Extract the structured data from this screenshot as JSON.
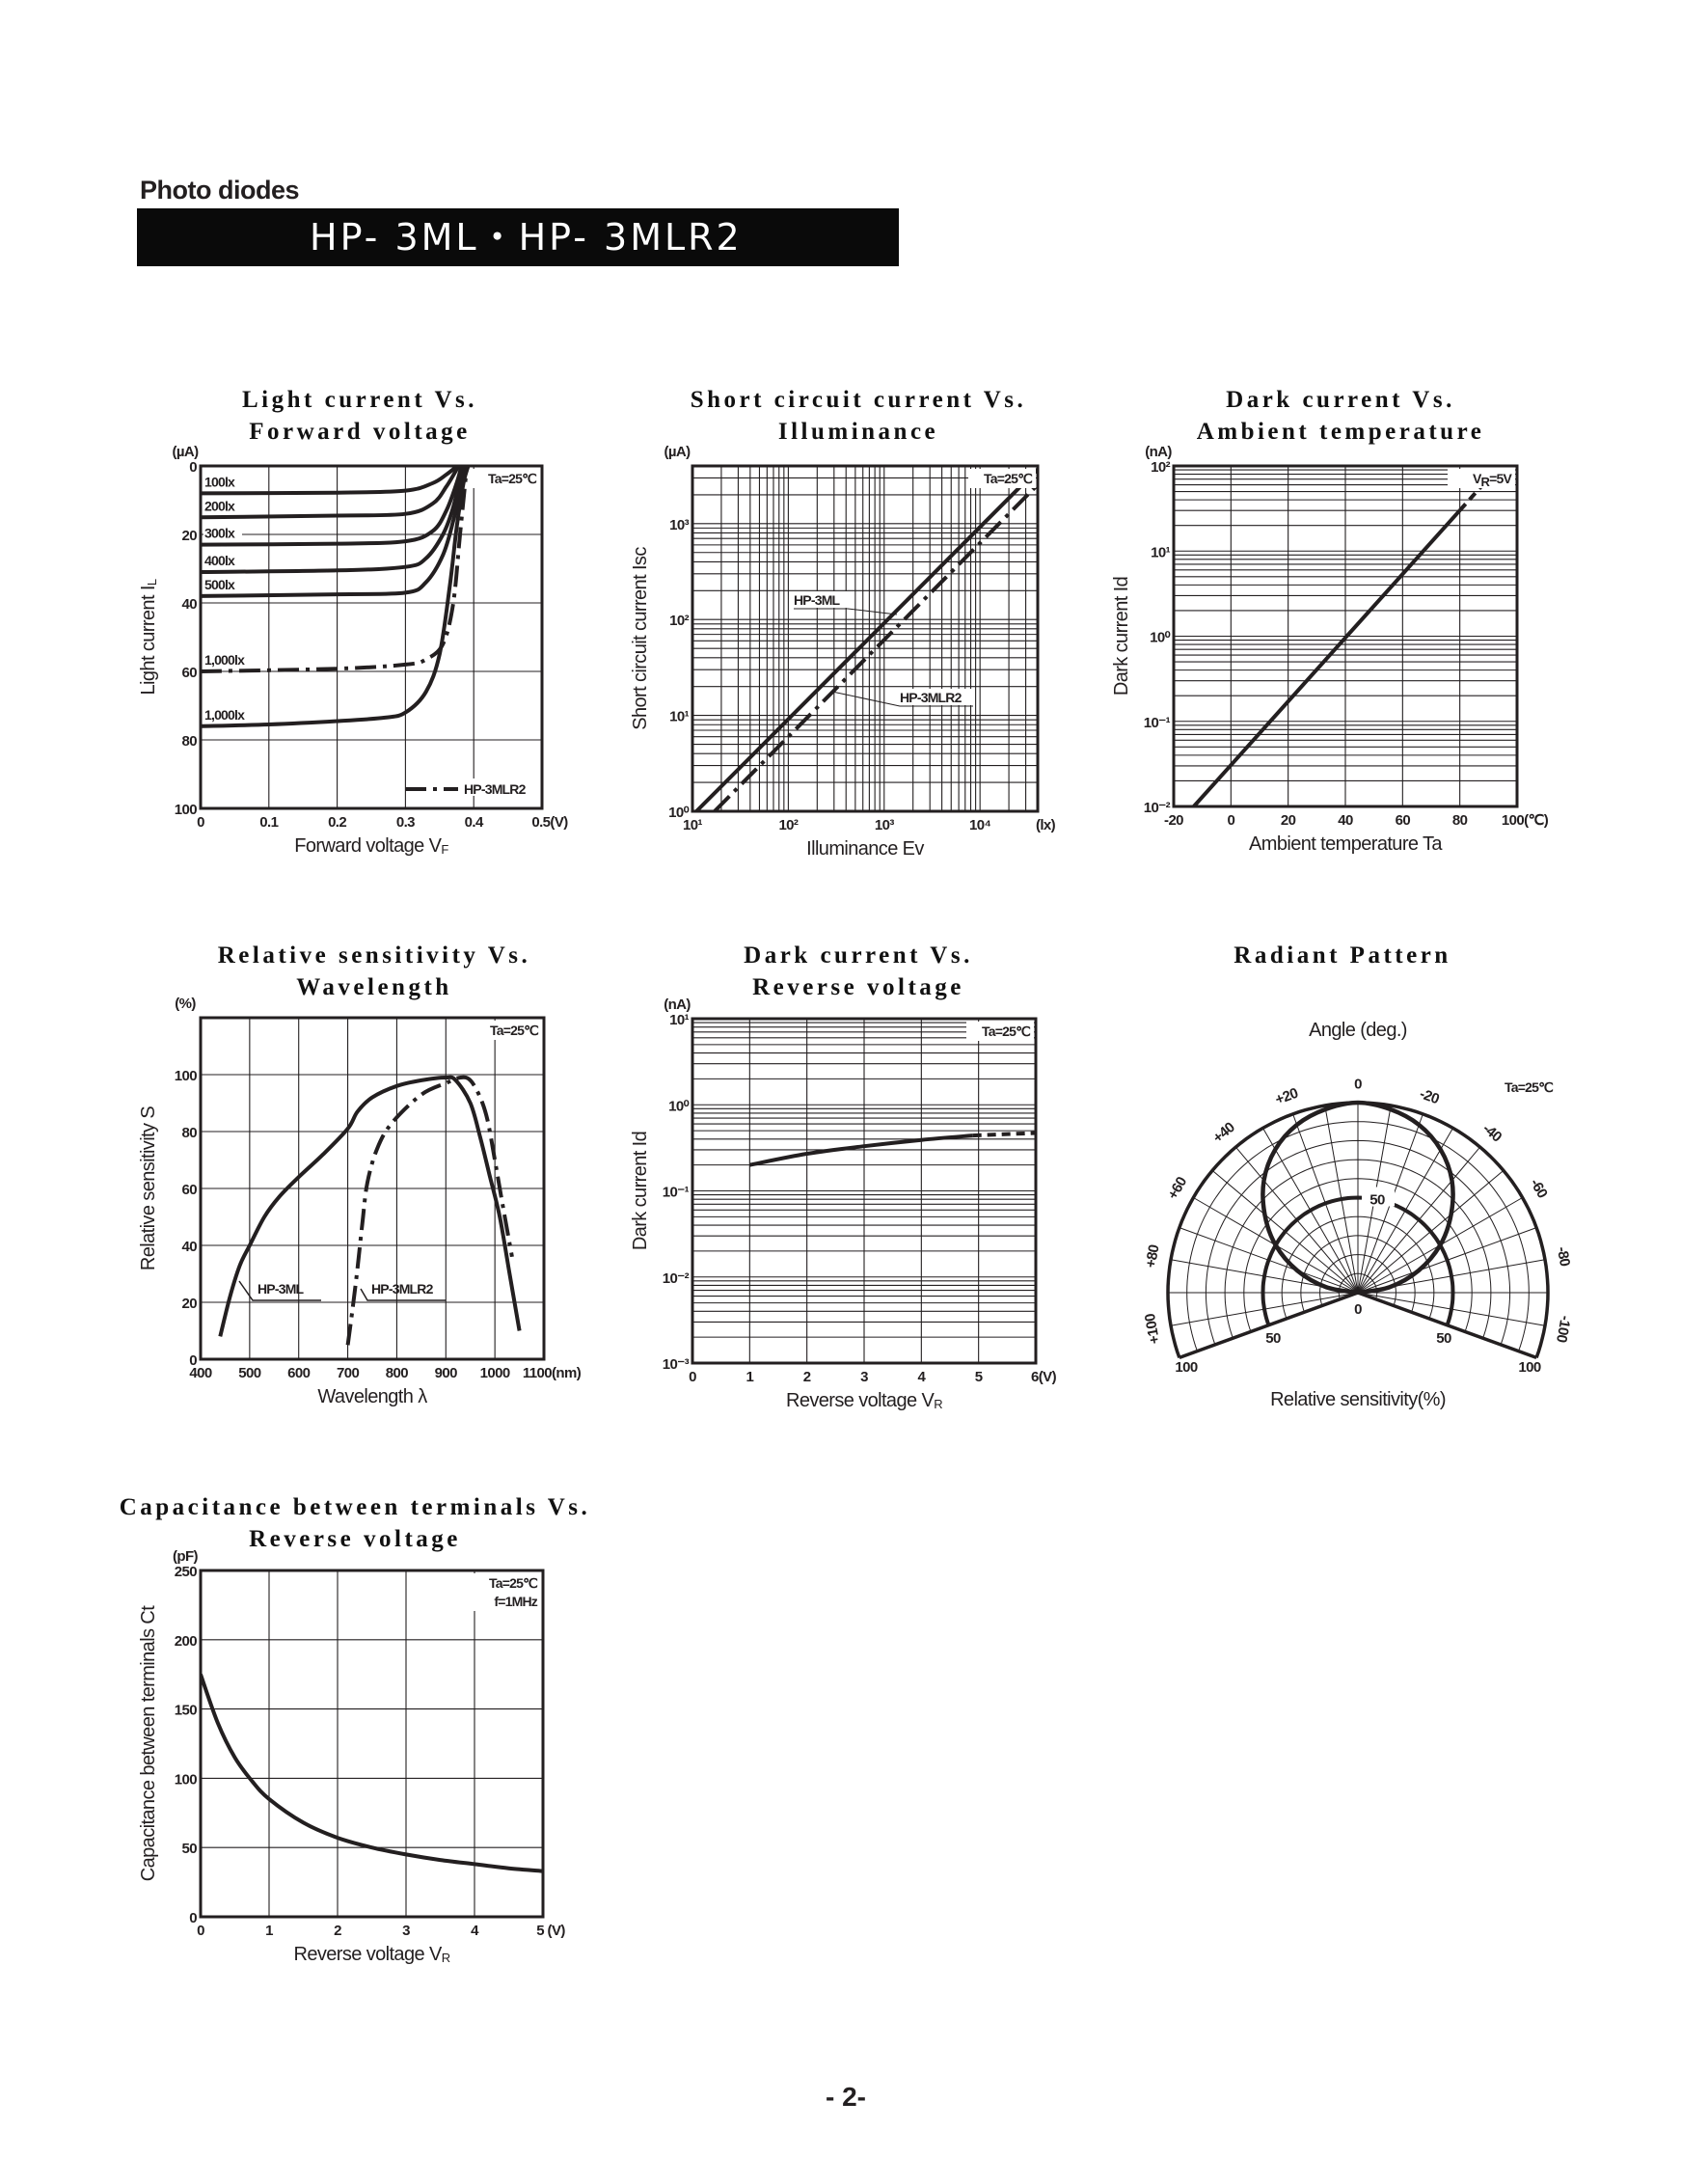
{
  "header": {
    "section": "Photo diodes",
    "model": "HP- 3ML・HP- 3MLR2"
  },
  "footer": {
    "page": "- 2-"
  },
  "colors": {
    "ink": "#231f20",
    "bar": "#0a0a0a",
    "bar_text": "#ffffff"
  },
  "chart_data": [
    {
      "type": "line",
      "title": [
        "Light current Vs.",
        "Forward voltage"
      ],
      "condition": [
        "Ta=25℃"
      ],
      "xaxis": {
        "label": "Forward voltage  V",
        "label_sub": "F",
        "scale": "linear",
        "range": [
          0,
          0.5
        ],
        "ticks": [
          0,
          0.1,
          0.2,
          0.3,
          0.4,
          0.5
        ],
        "tick_labels": [
          "0",
          "0.1",
          "0.2",
          "0.3",
          "0.4",
          "0.5(V)"
        ],
        "grid": [
          0.1,
          0.2,
          0.3,
          0.4
        ]
      },
      "yaxis": {
        "label": "Light current  I",
        "label_sub": "L",
        "unit": "(µA)",
        "scale": "linear",
        "range": [
          0,
          100
        ],
        "reversed": true,
        "ticks": [
          0,
          20,
          40,
          60,
          80,
          100
        ],
        "tick_labels": [
          "0",
          "20",
          "40",
          "60",
          "80",
          "100"
        ],
        "grid": [
          20,
          40,
          60,
          80
        ]
      },
      "legend": {
        "position": "bottom-right",
        "entries": [
          {
            "label": "HP-3MLR2",
            "style": "dashdot"
          }
        ]
      },
      "series": [
        {
          "name": "100lx",
          "style": "solid",
          "points": [
            [
              0,
              8
            ],
            [
              0.2,
              7.8
            ],
            [
              0.3,
              7.2
            ],
            [
              0.34,
              5
            ],
            [
              0.36,
              2.5
            ],
            [
              0.376,
              0
            ]
          ]
        },
        {
          "name": "200lx",
          "style": "solid",
          "points": [
            [
              0,
              15
            ],
            [
              0.2,
              14.5
            ],
            [
              0.3,
              14
            ],
            [
              0.34,
              11
            ],
            [
              0.36,
              6
            ],
            [
              0.378,
              0
            ]
          ]
        },
        {
          "name": "300lx",
          "style": "solid",
          "points": [
            [
              0,
              23
            ],
            [
              0.2,
              22.7
            ],
            [
              0.3,
              22
            ],
            [
              0.34,
              19
            ],
            [
              0.36,
              13
            ],
            [
              0.375,
              5
            ],
            [
              0.382,
              0
            ]
          ]
        },
        {
          "name": "400lx",
          "style": "solid",
          "points": [
            [
              0,
              31
            ],
            [
              0.2,
              30.5
            ],
            [
              0.3,
              29.5
            ],
            [
              0.33,
              27
            ],
            [
              0.355,
              20
            ],
            [
              0.37,
              12
            ],
            [
              0.384,
              0
            ]
          ]
        },
        {
          "name": "500lx",
          "style": "solid",
          "points": [
            [
              0,
              38
            ],
            [
              0.2,
              37.5
            ],
            [
              0.3,
              37
            ],
            [
              0.33,
              34
            ],
            [
              0.355,
              26
            ],
            [
              0.37,
              16
            ],
            [
              0.385,
              3
            ],
            [
              0.388,
              0
            ]
          ]
        },
        {
          "name": "1,000lx",
          "style": "dashdot",
          "points": [
            [
              0,
              60
            ],
            [
              0.2,
              59.2
            ],
            [
              0.3,
              58
            ],
            [
              0.33,
              56.5
            ],
            [
              0.355,
              52
            ],
            [
              0.37,
              40
            ],
            [
              0.38,
              20
            ],
            [
              0.39,
              0
            ]
          ]
        },
        {
          "name": "1,000lx",
          "style": "solid",
          "points": [
            [
              0,
              76
            ],
            [
              0.1,
              75.5
            ],
            [
              0.2,
              74.5
            ],
            [
              0.27,
              73.5
            ],
            [
              0.3,
              72
            ],
            [
              0.33,
              66
            ],
            [
              0.35,
              55
            ],
            [
              0.365,
              35
            ],
            [
              0.375,
              18
            ],
            [
              0.385,
              5
            ],
            [
              0.392,
              0
            ]
          ]
        }
      ]
    },
    {
      "type": "line",
      "title": [
        "Short circuit current Vs.",
        "Illuminance"
      ],
      "condition": [
        "Ta=25℃"
      ],
      "xaxis": {
        "label": "Illuminance   Ev",
        "label_sub": "",
        "scale": "log",
        "range": [
          10,
          40000
        ],
        "ticks": [
          10,
          100,
          1000,
          10000,
          40000
        ],
        "tick_labels": [
          "10¹",
          "10²",
          "10³",
          "10⁴",
          "(lx)"
        ],
        "grid": "log-minor"
      },
      "yaxis": {
        "label": "Short circuit current   Isc",
        "label_sub": "",
        "unit": "(µA)",
        "scale": "log",
        "range": [
          1,
          4000
        ],
        "ticks": [
          1,
          10,
          100,
          1000
        ],
        "tick_labels": [
          "10⁰",
          "10¹",
          "10²",
          "10³"
        ],
        "grid": "log-minor"
      },
      "series": [
        {
          "name": "HP-3ML",
          "style": "solid",
          "points": [
            [
              11,
              1
            ],
            [
              40000,
              3700
            ]
          ]
        },
        {
          "name": "HP-3MLR2",
          "style": "dashdot",
          "points": [
            [
              17,
              1
            ],
            [
              40000,
              2550
            ]
          ]
        }
      ]
    },
    {
      "type": "line",
      "title": [
        "Dark current Vs.",
        "Ambient temperature"
      ],
      "condition": [
        "V",
        "R",
        "=5V"
      ],
      "xaxis": {
        "label": "Ambient temperature   Ta",
        "label_sub": "",
        "scale": "linear",
        "range": [
          -20,
          100
        ],
        "ticks": [
          -20,
          0,
          20,
          40,
          60,
          80,
          100
        ],
        "tick_labels": [
          "-20",
          "0",
          "20",
          "40",
          "60",
          "80",
          "100(℃)"
        ],
        "grid": [
          0,
          20,
          40,
          60,
          80
        ]
      },
      "yaxis": {
        "label": "Dark current  Id",
        "label_sub": "",
        "unit": "(nA)",
        "scale": "log",
        "range": [
          0.01,
          100
        ],
        "ticks": [
          0.01,
          0.1,
          1,
          10,
          100
        ],
        "tick_labels": [
          "10⁻²",
          "10⁻¹",
          "10⁰",
          "10¹",
          "10²"
        ],
        "grid": "log-minor"
      },
      "series": [
        {
          "style": "solid",
          "points": [
            [
              -13,
              0.01
            ],
            [
              80,
              30
            ]
          ]
        },
        {
          "style": "dashed",
          "points": [
            [
              80,
              30
            ],
            [
              92,
              85
            ]
          ]
        }
      ]
    },
    {
      "type": "line",
      "title": [
        "Relative sensitivity Vs.",
        "Wavelength"
      ],
      "condition": [
        "Ta=25℃"
      ],
      "xaxis": {
        "label": "Wavelength   λ",
        "label_sub": "",
        "scale": "linear",
        "range": [
          400,
          1100
        ],
        "ticks": [
          400,
          500,
          600,
          700,
          800,
          900,
          1000,
          1100
        ],
        "tick_labels": [
          "400",
          "500",
          "600",
          "700",
          "800",
          "900",
          "1000",
          "1100(nm)"
        ],
        "grid": [
          500,
          600,
          700,
          800,
          900,
          1000
        ]
      },
      "yaxis": {
        "label": "Relative sensitivity   S",
        "label_sub": "",
        "unit": "(%)",
        "scale": "linear",
        "range": [
          0,
          120
        ],
        "ticks": [
          0,
          20,
          40,
          60,
          80,
          100
        ],
        "tick_labels": [
          "0",
          "20",
          "40",
          "60",
          "80",
          "100"
        ],
        "grid": [
          20,
          40,
          60,
          80,
          100
        ]
      },
      "series": [
        {
          "name": "HP-3ML",
          "style": "solid",
          "points": [
            [
              440,
              8
            ],
            [
              460,
              22
            ],
            [
              480,
              33
            ],
            [
              500,
              40
            ],
            [
              530,
              50
            ],
            [
              560,
              57
            ],
            [
              600,
              64
            ],
            [
              650,
              72
            ],
            [
              700,
              81
            ],
            [
              720,
              87
            ],
            [
              750,
              92
            ],
            [
              800,
              96
            ],
            [
              850,
              98
            ],
            [
              900,
              99
            ],
            [
              920,
              98
            ],
            [
              950,
              90
            ],
            [
              970,
              78
            ],
            [
              990,
              64
            ],
            [
              1010,
              50
            ],
            [
              1030,
              30
            ],
            [
              1050,
              10
            ]
          ]
        },
        {
          "name": "HP-3MLR2",
          "style": "dashdot",
          "points": [
            [
              700,
              5
            ],
            [
              710,
              18
            ],
            [
              720,
              32
            ],
            [
              730,
              48
            ],
            [
              740,
              62
            ],
            [
              760,
              74
            ],
            [
              790,
              83
            ],
            [
              850,
              93
            ],
            [
              900,
              97
            ],
            [
              930,
              99
            ],
            [
              950,
              98
            ],
            [
              970,
              92
            ],
            [
              985,
              84
            ],
            [
              1000,
              70
            ],
            [
              1015,
              55
            ],
            [
              1035,
              36
            ]
          ]
        }
      ]
    },
    {
      "type": "line",
      "title": [
        "Dark current Vs.",
        "Reverse voltage"
      ],
      "condition": [
        "Ta=25℃"
      ],
      "xaxis": {
        "label": "Reverse voltage V",
        "label_sub": "R",
        "scale": "linear",
        "range": [
          0,
          6
        ],
        "ticks": [
          0,
          1,
          2,
          3,
          4,
          5,
          6
        ],
        "tick_labels": [
          "0",
          "1",
          "2",
          "3",
          "4",
          "5",
          "6(V)"
        ],
        "grid": [
          1,
          2,
          3,
          4,
          5
        ]
      },
      "yaxis": {
        "label": "Dark current  Id",
        "label_sub": "",
        "unit": "(nA)",
        "scale": "log",
        "range": [
          0.001,
          10
        ],
        "ticks": [
          0.001,
          0.01,
          0.1,
          1,
          10
        ],
        "tick_labels": [
          "10⁻³",
          "10⁻²",
          "10⁻¹",
          "10⁰",
          "10¹"
        ],
        "grid": "log-minor"
      },
      "series": [
        {
          "style": "solid",
          "points": [
            [
              1,
              0.2
            ],
            [
              2,
              0.27
            ],
            [
              3,
              0.33
            ],
            [
              4,
              0.39
            ],
            [
              4.9,
              0.44
            ]
          ]
        },
        {
          "style": "dashed",
          "points": [
            [
              4.9,
              0.44
            ],
            [
              6,
              0.47
            ]
          ]
        }
      ]
    },
    {
      "type": "polar",
      "title": [
        "Radiant Pattern"
      ],
      "angle_label": "Angle (deg.)",
      "radius_label": "Relative sensitivity(%)",
      "condition": [
        "Ta=25℃"
      ],
      "angle_range": [
        -110,
        110
      ],
      "angle_ticks": [
        100,
        80,
        60,
        40,
        20,
        0,
        -20,
        -40,
        -60,
        -80,
        -100
      ],
      "angle_tick_labels": [
        "+100",
        "+80",
        "+60",
        "+40",
        "+20",
        "0",
        "-20",
        "-40",
        "-60",
        "-80",
        "-100"
      ],
      "radius_range": [
        0,
        100
      ],
      "radius_tick_labels": {
        "center": "0",
        "top": "50",
        "left_50": "50",
        "right_50": "50",
        "left_100": "100",
        "right_100": "100"
      },
      "emphasized_ring": 50,
      "series": [
        {
          "style": "solid",
          "points": [
            [
              -90,
              0
            ],
            [
              -80,
              17
            ],
            [
              -70,
              34
            ],
            [
              -60,
              50
            ],
            [
              -50,
              64
            ],
            [
              -40,
              77
            ],
            [
              -30,
              87
            ],
            [
              -20,
              94
            ],
            [
              -10,
              98
            ],
            [
              0,
              100
            ],
            [
              10,
              98
            ],
            [
              20,
              94
            ],
            [
              30,
              87
            ],
            [
              40,
              77
            ],
            [
              50,
              64
            ],
            [
              60,
              50
            ],
            [
              70,
              34
            ],
            [
              80,
              17
            ],
            [
              90,
              0
            ]
          ]
        }
      ]
    },
    {
      "type": "line",
      "title": [
        "Capacitance between terminals Vs.",
        "Reverse voltage"
      ],
      "condition": [
        "Ta=25℃",
        "f=1MHz"
      ],
      "xaxis": {
        "label": "Reverse voltage  V",
        "label_sub": "R",
        "scale": "linear",
        "range": [
          0,
          5
        ],
        "ticks": [
          0,
          1,
          2,
          3,
          4,
          5
        ],
        "tick_labels": [
          "0",
          "1",
          "2",
          "3",
          "4",
          "5 (V)"
        ],
        "grid": [
          1,
          2,
          3,
          4
        ]
      },
      "yaxis": {
        "label": "Capacitance between terminals   Ct",
        "label_sub": "",
        "unit": "(pF)",
        "scale": "linear",
        "range": [
          0,
          250
        ],
        "ticks": [
          0,
          50,
          100,
          150,
          200,
          250
        ],
        "tick_labels": [
          "0",
          "50",
          "100",
          "150",
          "200",
          "250"
        ],
        "grid": [
          50,
          100,
          150,
          200
        ]
      },
      "series": [
        {
          "style": "solid",
          "points": [
            [
              0,
              175
            ],
            [
              0.25,
              140
            ],
            [
              0.5,
              115
            ],
            [
              0.75,
              98
            ],
            [
              1,
              85
            ],
            [
              1.5,
              68
            ],
            [
              2,
              57
            ],
            [
              2.5,
              50
            ],
            [
              3,
              45
            ],
            [
              3.5,
              41
            ],
            [
              4,
              38
            ],
            [
              4.5,
              35
            ],
            [
              5,
              33
            ]
          ]
        }
      ]
    }
  ]
}
